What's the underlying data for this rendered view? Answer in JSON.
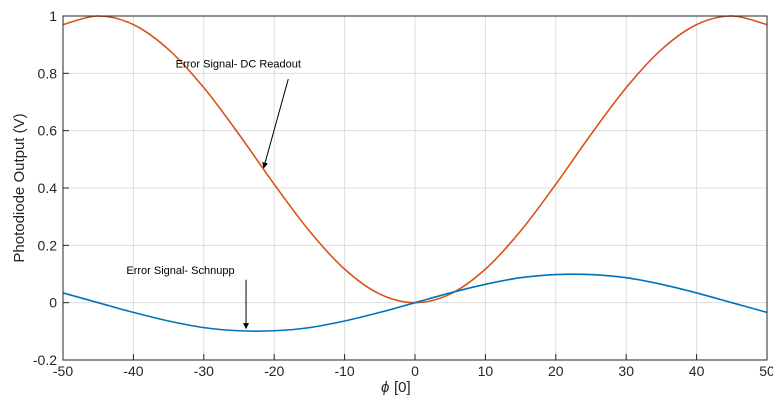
{
  "chart_data": {
    "type": "line",
    "xlabel_symbol": "ϕ",
    "xlabel_unit": "[0]",
    "ylabel": "Photodiode Output (V)",
    "xlim": [
      -50,
      50
    ],
    "ylim": [
      -0.2,
      1
    ],
    "grid": true,
    "xticks": [
      -50,
      -40,
      -30,
      -20,
      -10,
      0,
      10,
      20,
      30,
      40,
      50
    ],
    "yticks": [
      -0.2,
      0,
      0.2,
      0.4,
      0.6,
      0.8,
      1
    ],
    "xtick_labels": [
      "-50",
      "-40",
      "-30",
      "-20",
      "-10",
      "0",
      "10",
      "20",
      "30",
      "40",
      "50"
    ],
    "ytick_labels": [
      "-0.2",
      "0",
      "0.2",
      "0.4",
      "0.6",
      "0.8",
      "1"
    ],
    "series": [
      {
        "color": "#D95319",
        "x": [
          -50,
          -45,
          -40,
          -35,
          -30,
          -25,
          -20,
          -15,
          -10,
          -5,
          0,
          5,
          10,
          15,
          20,
          25,
          30,
          35,
          40,
          45,
          50
        ],
        "values": [
          0.97,
          1.0,
          0.97,
          0.883,
          0.75,
          0.587,
          0.413,
          0.25,
          0.117,
          0.03,
          0.0,
          0.03,
          0.117,
          0.25,
          0.413,
          0.587,
          0.75,
          0.883,
          0.97,
          1.0,
          0.97
        ]
      },
      {
        "color": "#0072BD",
        "x": [
          -50,
          -45,
          -40,
          -35,
          -30,
          -25,
          -20,
          -15,
          -10,
          -5,
          0,
          5,
          10,
          15,
          20,
          25,
          30,
          35,
          40,
          45,
          50
        ],
        "values": [
          0.034,
          0.0,
          -0.034,
          -0.064,
          -0.087,
          -0.098,
          -0.098,
          -0.087,
          -0.064,
          -0.034,
          0.0,
          0.034,
          0.064,
          0.087,
          0.098,
          0.098,
          0.087,
          0.064,
          0.034,
          0.0,
          -0.034
        ]
      }
    ],
    "annotations": [
      {
        "text": "Error Signal- DC Readout",
        "text_at": [
          -34,
          0.82
        ],
        "arrow_from": [
          -18,
          0.78
        ],
        "arrow_to": [
          -21.5,
          0.47
        ]
      },
      {
        "text": "Error Signal- Schnupp",
        "text_at": [
          -41,
          0.1
        ],
        "arrow_from": [
          -24,
          0.08
        ],
        "arrow_to": [
          -24,
          -0.09
        ]
      }
    ]
  }
}
